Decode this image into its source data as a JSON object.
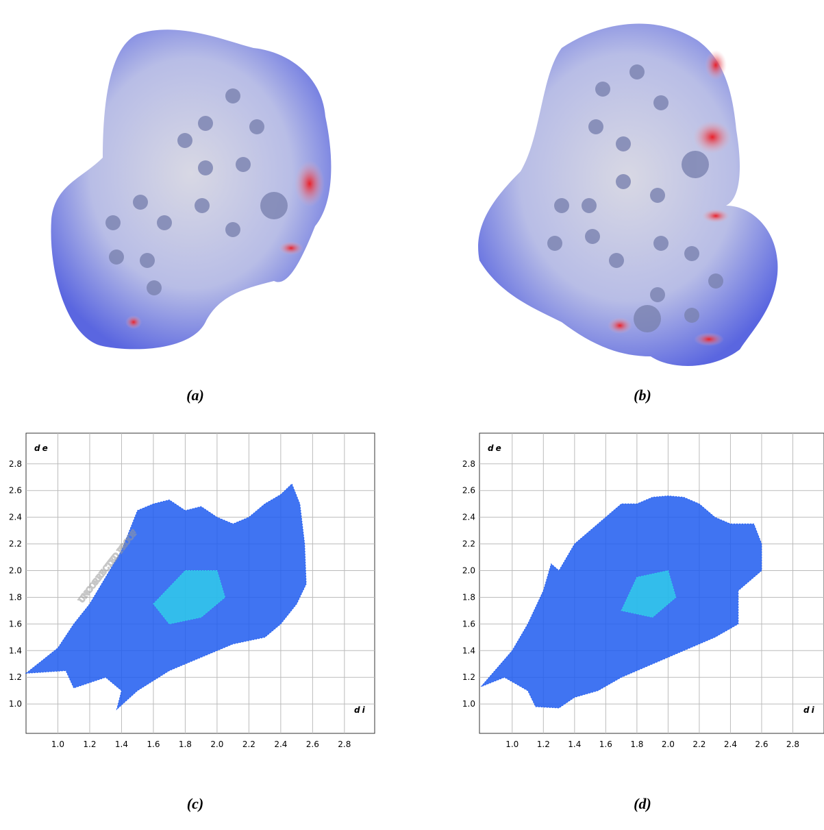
{
  "watermark": "UNCORRECTED PROOF",
  "panel_labels": [
    "(a)",
    "(b)",
    "(c)",
    "(d)"
  ],
  "chart_data": [
    {
      "type": "fingerprint",
      "xlabel": "di",
      "ylabel": "de",
      "xlim": [
        0.8,
        2.99
      ],
      "ylim": [
        0.78,
        3.03
      ],
      "xticks": [
        {
          "value": 1,
          "label": "1.0"
        },
        1.2,
        1.4,
        1.6,
        1.8,
        {
          "value": 2,
          "label": "2.0"
        },
        2.2,
        2.4,
        2.6,
        2.8
      ],
      "yticks": [
        {
          "value": 1,
          "label": "1.0"
        },
        1.2,
        1.4,
        1.6,
        1.8,
        {
          "value": 2,
          "label": "2.0"
        },
        2.2,
        2.4,
        2.6,
        2.8
      ],
      "grid": true,
      "series": [
        {
          "color": "#1f5cf0",
          "x": [
            0.8,
            1.0,
            1.1,
            1.2,
            1.3,
            1.4,
            1.45,
            1.5,
            1.6,
            1.7,
            1.8,
            1.9,
            2.0,
            2.1,
            2.2,
            2.3,
            2.4,
            2.47,
            2.52,
            2.55,
            2.56,
            2.5,
            2.4,
            2.3,
            2.1,
            1.9,
            1.7,
            1.5,
            1.37,
            1.4,
            1.3,
            1.1,
            1.05
          ],
          "values": [
            1.23,
            1.42,
            1.6,
            1.75,
            1.95,
            2.15,
            2.3,
            2.45,
            2.5,
            2.53,
            2.45,
            2.48,
            2.4,
            2.35,
            2.4,
            2.5,
            2.57,
            2.65,
            2.5,
            2.2,
            1.9,
            1.75,
            1.6,
            1.5,
            1.45,
            1.35,
            1.25,
            1.1,
            0.96,
            1.1,
            1.2,
            1.12,
            1.25
          ]
        },
        {
          "color": "#2fd6e8",
          "x": [
            1.6,
            1.8,
            2.0,
            2.05,
            1.9,
            1.7
          ],
          "values": [
            1.75,
            2.0,
            2.0,
            1.8,
            1.65,
            1.6
          ]
        }
      ]
    },
    {
      "type": "fingerprint",
      "xlabel": "di",
      "ylabel": "de",
      "xlim": [
        0.79,
        3.0
      ],
      "ylim": [
        0.78,
        3.03
      ],
      "xticks": [
        {
          "value": 1,
          "label": "1.0"
        },
        1.2,
        1.4,
        1.6,
        1.8,
        {
          "value": 2,
          "label": "2.0"
        },
        2.2,
        2.4,
        2.6,
        2.8
      ],
      "yticks": [
        {
          "value": 1,
          "label": "1.0"
        },
        1.2,
        1.4,
        1.6,
        1.8,
        {
          "value": 2,
          "label": "2.0"
        },
        2.2,
        2.4,
        2.6,
        2.8
      ],
      "grid": true,
      "series": [
        {
          "color": "#1f5cf0",
          "x": [
            0.8,
            1.0,
            1.1,
            1.2,
            1.25,
            1.3,
            1.4,
            1.5,
            1.6,
            1.7,
            1.8,
            1.9,
            2.0,
            2.1,
            2.2,
            2.3,
            2.4,
            2.55,
            2.6,
            2.6,
            2.45,
            2.45,
            2.3,
            2.1,
            1.9,
            1.7,
            1.55,
            1.4,
            1.3,
            1.15,
            1.1,
            0.95
          ],
          "values": [
            1.13,
            1.4,
            1.6,
            1.85,
            2.05,
            2.0,
            2.2,
            2.3,
            2.4,
            2.5,
            2.5,
            2.55,
            2.56,
            2.55,
            2.5,
            2.4,
            2.35,
            2.35,
            2.2,
            2.0,
            1.85,
            1.6,
            1.5,
            1.4,
            1.3,
            1.2,
            1.1,
            1.05,
            0.97,
            0.98,
            1.1,
            1.2
          ]
        },
        {
          "color": "#2fd6e8",
          "x": [
            1.7,
            1.8,
            2.0,
            2.05,
            1.9
          ],
          "values": [
            1.7,
            1.95,
            2.0,
            1.8,
            1.65
          ]
        }
      ]
    }
  ]
}
